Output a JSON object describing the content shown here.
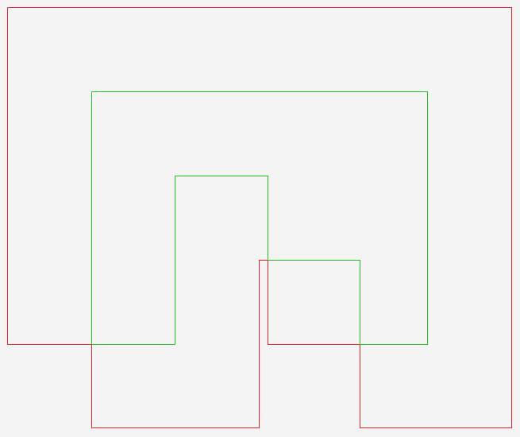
{
  "diagram": {
    "background_color": "#f4f4f4",
    "outlines": [
      {
        "name": "red-outline",
        "color": "#e8202a"
      },
      {
        "name": "green-outline",
        "color": "#20c020"
      }
    ]
  }
}
